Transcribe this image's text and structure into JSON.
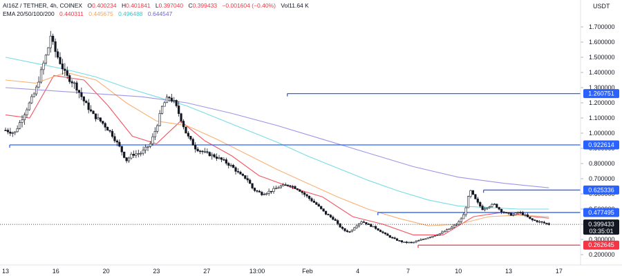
{
  "header": {
    "symbol": "AI16Z / TETHER, 4h, COINEX",
    "open_label": "O",
    "open": "0.400234",
    "high_label": "H",
    "high": "0.401841",
    "low_label": "L",
    "low": "0.397040",
    "close_label": "C",
    "close": "0.399433",
    "change": "−0.001604 (−0.40%)",
    "volume": "Vol11.64 K",
    "ema_label": "EMA 20/50/100/200",
    "ema_values": [
      "0.440311",
      "0.445675",
      "0.496488",
      "0.644547"
    ]
  },
  "colors": {
    "up": "#131722",
    "down": "#131722",
    "ema20": "#f23645",
    "ema50": "#f7a35c",
    "ema100": "#5fd6df",
    "ema200": "#8a84e3",
    "resistance": "#2962ff",
    "support": "#f23645",
    "price_tag": "#131722"
  },
  "chart_data": {
    "type": "candlestick",
    "currency_label": "USDT",
    "ylim": [
      0.15,
      1.75
    ],
    "y_ticks": [
      "1.700000",
      "1.600000",
      "1.500000",
      "1.400000",
      "1.300000",
      "1.200000",
      "1.100000",
      "1.000000",
      "0.900000",
      "0.800000",
      "0.700000",
      "0.600000",
      "0.500000",
      "0.400000",
      "0.300000",
      "0.200000"
    ],
    "x_ticks": [
      "13",
      "16",
      "20",
      "23",
      "27",
      "13:00",
      "Feb",
      "4",
      "7",
      "10",
      "13",
      "17"
    ],
    "price_label": {
      "value": "0.399433",
      "countdown": "03:35:01"
    },
    "levels": [
      {
        "value": 1.260751,
        "label": "1.260751",
        "kind": "resistance",
        "start_tick": 5.6
      },
      {
        "value": 0.922614,
        "label": "0.922614",
        "kind": "resistance",
        "start_tick": 0
      },
      {
        "value": 0.625336,
        "label": "0.625336",
        "kind": "resistance",
        "start_tick": 9.5
      },
      {
        "value": 0.477495,
        "label": "0.477495",
        "kind": "resistance",
        "start_tick": 7.4
      },
      {
        "value": 0.262645,
        "label": "0.262645",
        "kind": "support",
        "start_tick": 8.2
      }
    ],
    "price_path": [
      [
        0.0,
        1.02
      ],
      [
        0.3,
        1.0
      ],
      [
        0.5,
        1.08
      ],
      [
        0.8,
        1.2
      ],
      [
        1.0,
        1.28
      ],
      [
        1.2,
        1.42
      ],
      [
        1.4,
        1.55
      ],
      [
        1.5,
        1.65
      ],
      [
        1.6,
        1.56
      ],
      [
        1.8,
        1.47
      ],
      [
        2.0,
        1.38
      ],
      [
        2.3,
        1.32
      ],
      [
        2.6,
        1.21
      ],
      [
        2.9,
        1.12
      ],
      [
        3.2,
        1.07
      ],
      [
        3.5,
        1.0
      ],
      [
        3.8,
        0.9
      ],
      [
        4.0,
        0.82
      ],
      [
        4.2,
        0.86
      ],
      [
        4.5,
        0.87
      ],
      [
        4.8,
        0.93
      ],
      [
        5.0,
        1.04
      ],
      [
        5.2,
        1.18
      ],
      [
        5.4,
        1.24
      ],
      [
        5.6,
        1.2
      ],
      [
        5.8,
        1.1
      ],
      [
        6.0,
        0.99
      ],
      [
        6.3,
        0.9
      ],
      [
        6.6,
        0.87
      ],
      [
        6.9,
        0.85
      ],
      [
        7.2,
        0.82
      ],
      [
        7.5,
        0.78
      ],
      [
        7.8,
        0.72
      ],
      [
        8.0,
        0.7
      ],
      [
        8.2,
        0.63
      ],
      [
        8.5,
        0.6
      ],
      [
        8.8,
        0.62
      ],
      [
        9.1,
        0.65
      ],
      [
        9.4,
        0.66
      ],
      [
        9.7,
        0.63
      ],
      [
        10.0,
        0.58
      ],
      [
        10.3,
        0.53
      ],
      [
        10.6,
        0.47
      ],
      [
        10.9,
        0.43
      ],
      [
        11.0,
        0.4
      ],
      [
        11.2,
        0.36
      ],
      [
        11.4,
        0.35
      ],
      [
        11.6,
        0.39
      ],
      [
        11.8,
        0.42
      ],
      [
        12.0,
        0.4
      ],
      [
        12.3,
        0.37
      ],
      [
        12.6,
        0.33
      ],
      [
        12.9,
        0.3
      ],
      [
        13.2,
        0.28
      ],
      [
        13.5,
        0.28
      ],
      [
        13.8,
        0.3
      ],
      [
        14.1,
        0.32
      ],
      [
        14.4,
        0.34
      ],
      [
        14.7,
        0.37
      ],
      [
        15.0,
        0.41
      ],
      [
        15.2,
        0.47
      ],
      [
        15.3,
        0.56
      ],
      [
        15.4,
        0.62
      ],
      [
        15.6,
        0.55
      ],
      [
        15.8,
        0.5
      ],
      [
        16.0,
        0.52
      ],
      [
        16.2,
        0.53
      ],
      [
        16.4,
        0.49
      ],
      [
        16.6,
        0.47
      ],
      [
        16.8,
        0.46
      ],
      [
        17.0,
        0.48
      ],
      [
        17.2,
        0.46
      ],
      [
        17.4,
        0.43
      ],
      [
        17.6,
        0.42
      ],
      [
        17.8,
        0.41
      ],
      [
        18.0,
        0.4
      ]
    ],
    "ema_series": [
      {
        "name": "EMA 20",
        "color_key": "ema20",
        "points": [
          [
            0,
            1.12
          ],
          [
            0.8,
            1.1
          ],
          [
            1.6,
            1.38
          ],
          [
            2.6,
            1.35
          ],
          [
            3.4,
            1.18
          ],
          [
            4.2,
            0.98
          ],
          [
            5.0,
            0.93
          ],
          [
            5.8,
            1.08
          ],
          [
            6.6,
            0.95
          ],
          [
            7.5,
            0.85
          ],
          [
            8.4,
            0.72
          ],
          [
            9.5,
            0.64
          ],
          [
            10.5,
            0.58
          ],
          [
            11.5,
            0.45
          ],
          [
            12.5,
            0.4
          ],
          [
            13.5,
            0.33
          ],
          [
            14.5,
            0.33
          ],
          [
            15.5,
            0.45
          ],
          [
            16.5,
            0.48
          ],
          [
            17.5,
            0.45
          ],
          [
            18.0,
            0.44
          ]
        ]
      },
      {
        "name": "EMA 50",
        "color_key": "ema50",
        "points": [
          [
            0,
            1.35
          ],
          [
            1.0,
            1.33
          ],
          [
            2.0,
            1.4
          ],
          [
            3.0,
            1.35
          ],
          [
            4.0,
            1.2
          ],
          [
            5.0,
            1.08
          ],
          [
            6.0,
            1.05
          ],
          [
            7.0,
            0.96
          ],
          [
            8.0,
            0.86
          ],
          [
            9.0,
            0.76
          ],
          [
            10.0,
            0.67
          ],
          [
            11.0,
            0.58
          ],
          [
            12.0,
            0.5
          ],
          [
            13.0,
            0.44
          ],
          [
            14.0,
            0.39
          ],
          [
            15.0,
            0.4
          ],
          [
            16.0,
            0.45
          ],
          [
            17.0,
            0.46
          ],
          [
            18.0,
            0.45
          ]
        ]
      },
      {
        "name": "EMA 100",
        "color_key": "ema100",
        "points": [
          [
            0,
            1.5
          ],
          [
            1.0,
            1.46
          ],
          [
            2.0,
            1.42
          ],
          [
            3.0,
            1.37
          ],
          [
            4.0,
            1.3
          ],
          [
            5.0,
            1.24
          ],
          [
            6.0,
            1.18
          ],
          [
            7.0,
            1.1
          ],
          [
            8.0,
            1.02
          ],
          [
            9.0,
            0.94
          ],
          [
            10.0,
            0.85
          ],
          [
            11.0,
            0.77
          ],
          [
            12.0,
            0.69
          ],
          [
            13.0,
            0.62
          ],
          [
            14.0,
            0.56
          ],
          [
            15.0,
            0.52
          ],
          [
            16.0,
            0.51
          ],
          [
            17.0,
            0.5
          ],
          [
            18.0,
            0.5
          ]
        ]
      },
      {
        "name": "EMA 200",
        "color_key": "ema200",
        "points": [
          [
            0,
            1.3
          ],
          [
            1.5,
            1.28
          ],
          [
            3.0,
            1.26
          ],
          [
            4.5,
            1.24
          ],
          [
            6.0,
            1.2
          ],
          [
            7.5,
            1.13
          ],
          [
            9.0,
            1.05
          ],
          [
            10.5,
            0.96
          ],
          [
            12.0,
            0.87
          ],
          [
            13.5,
            0.78
          ],
          [
            15.0,
            0.71
          ],
          [
            16.5,
            0.67
          ],
          [
            18.0,
            0.64
          ]
        ]
      }
    ]
  }
}
